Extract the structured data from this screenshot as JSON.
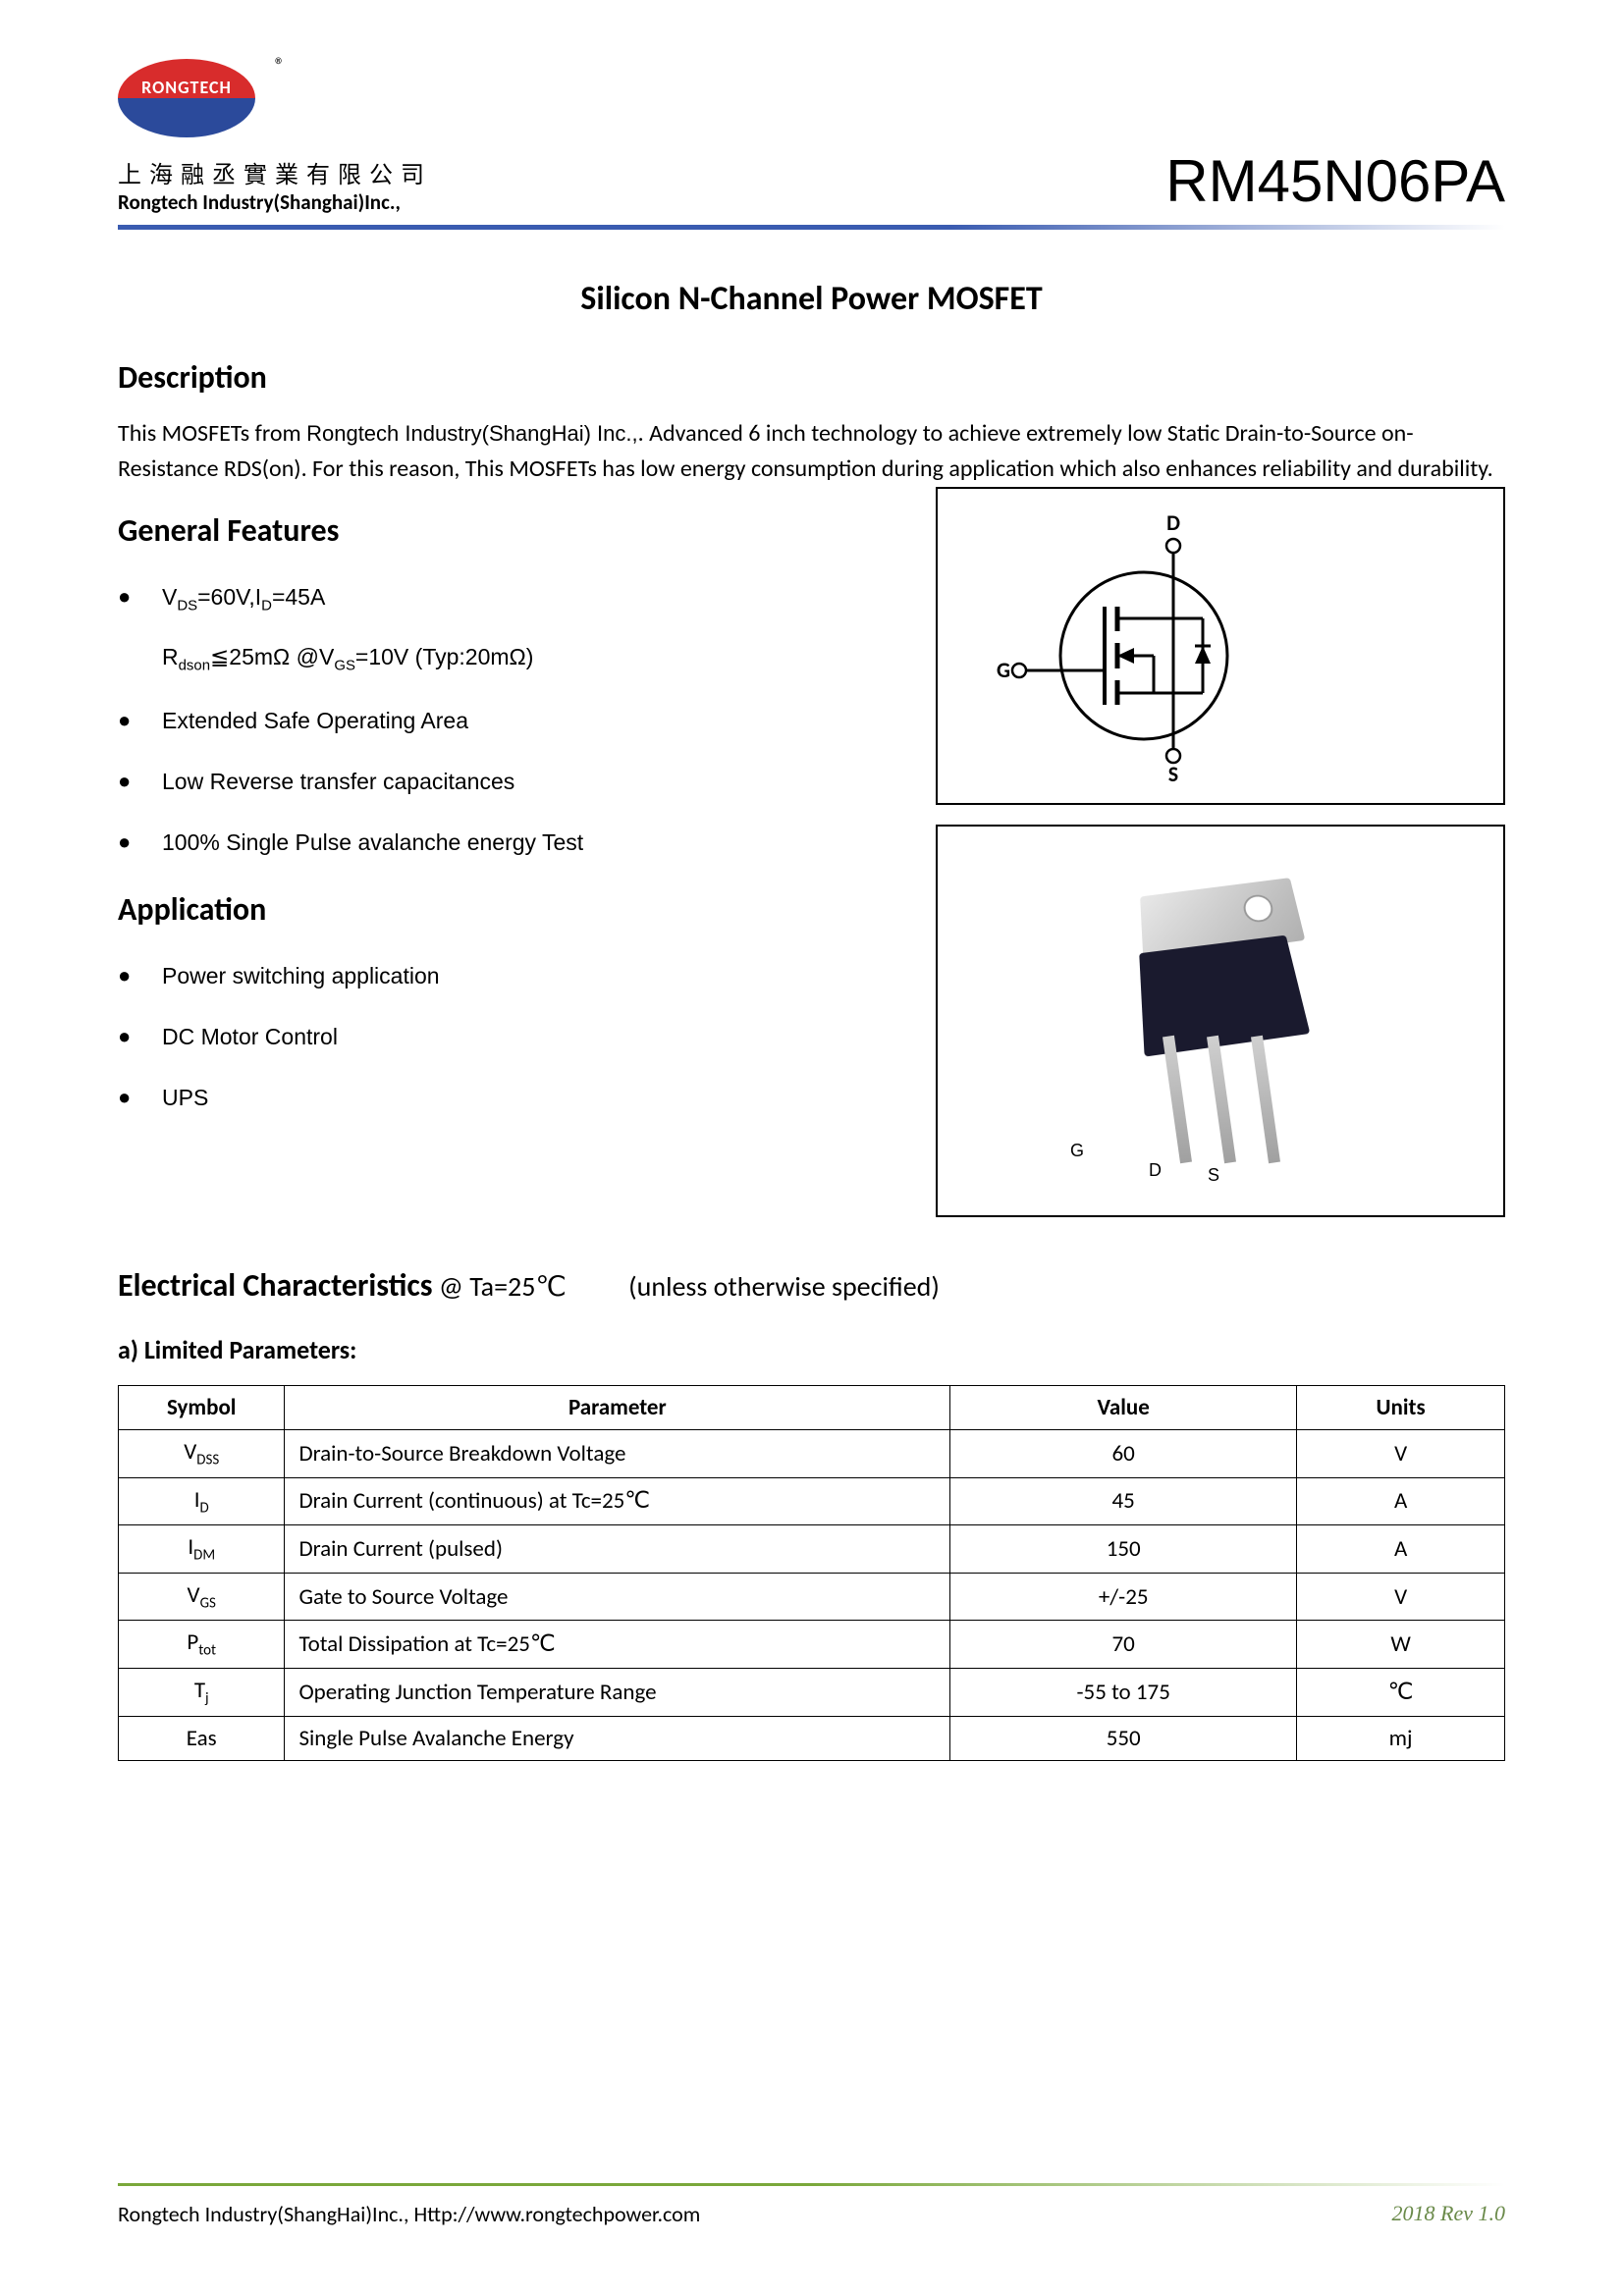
{
  "header": {
    "logo_text": "RONGTECH",
    "registered": "®",
    "company_cn": "上海融丞實業有限公司",
    "company_en": "Rongtech Industry(Shanghai)Inc.,",
    "part_number": "RM45N06PA"
  },
  "title": "Silicon N-Channel Power MOSFET",
  "description": {
    "heading": "Description",
    "text_pre": "This MOSFETs from ",
    "text_company": "Rongtech Industry(ShangHai) Inc.,",
    "text_post": ". Advanced 6 inch technology to achieve extremely low Static Drain-to-Source on-Resistance RDS(on). For this reason, This MOSFETs has low energy consumption during application which also enhances reliability and durability."
  },
  "features": {
    "heading": "General Features",
    "items": [
      "V<sub>DS</sub>=60V,I<sub>D</sub>=45A",
      "R<sub>dson</sub>≦25mΩ @V<sub>GS</sub>=10V   (Typ:20mΩ)",
      "Extended Safe Operating Area",
      "Low Reverse transfer capacitances",
      "100% Single Pulse avalanche energy Test"
    ]
  },
  "application": {
    "heading": "Application",
    "items": [
      "Power switching application",
      "DC Motor Control",
      "UPS"
    ]
  },
  "schematic": {
    "D": "D",
    "G": "G",
    "S": "S"
  },
  "package_labels": {
    "G": "G",
    "D": "D",
    "S": "S"
  },
  "electrical": {
    "heading_bold": "Electrical Characteristics",
    "heading_cond": " @ Ta=25℃",
    "heading_note": "(unless otherwise specified)",
    "sub": "a)  Limited Parameters:",
    "columns": [
      "Symbol",
      "Parameter",
      "Value",
      "Units"
    ],
    "rows": [
      {
        "symbol": "V<sub>DSS</sub>",
        "param": "Drain-to-Source Breakdown Voltage",
        "value": "60",
        "units": "V"
      },
      {
        "symbol": "I<sub>D</sub>",
        "param": "Drain Current (continuous) at Tc=25℃",
        "value": "45",
        "units": "A"
      },
      {
        "symbol": "I<sub>DM</sub>",
        "param": "Drain Current (pulsed)",
        "value": "150",
        "units": "A"
      },
      {
        "symbol": "V<sub>GS</sub>",
        "param": "Gate to Source Voltage",
        "value": "+/-25",
        "units": "V"
      },
      {
        "symbol": "P<sub>tot</sub>",
        "param": "Total Dissipation at Tc=25℃",
        "value": "70",
        "units": "W"
      },
      {
        "symbol": "T<sub>j</sub>",
        "param": "Operating Junction Temperature Range",
        "value": "-55 to 175",
        "units": "℃"
      },
      {
        "symbol": "Eas",
        "param": "Single Pulse Avalanche Energy",
        "value": "550",
        "units": "mj"
      }
    ]
  },
  "footer": {
    "company": "Rongtech Industry(ShangHai)Inc.,   Http://www.rongtechpower.com",
    "rev": "2018   Rev  1.0"
  }
}
